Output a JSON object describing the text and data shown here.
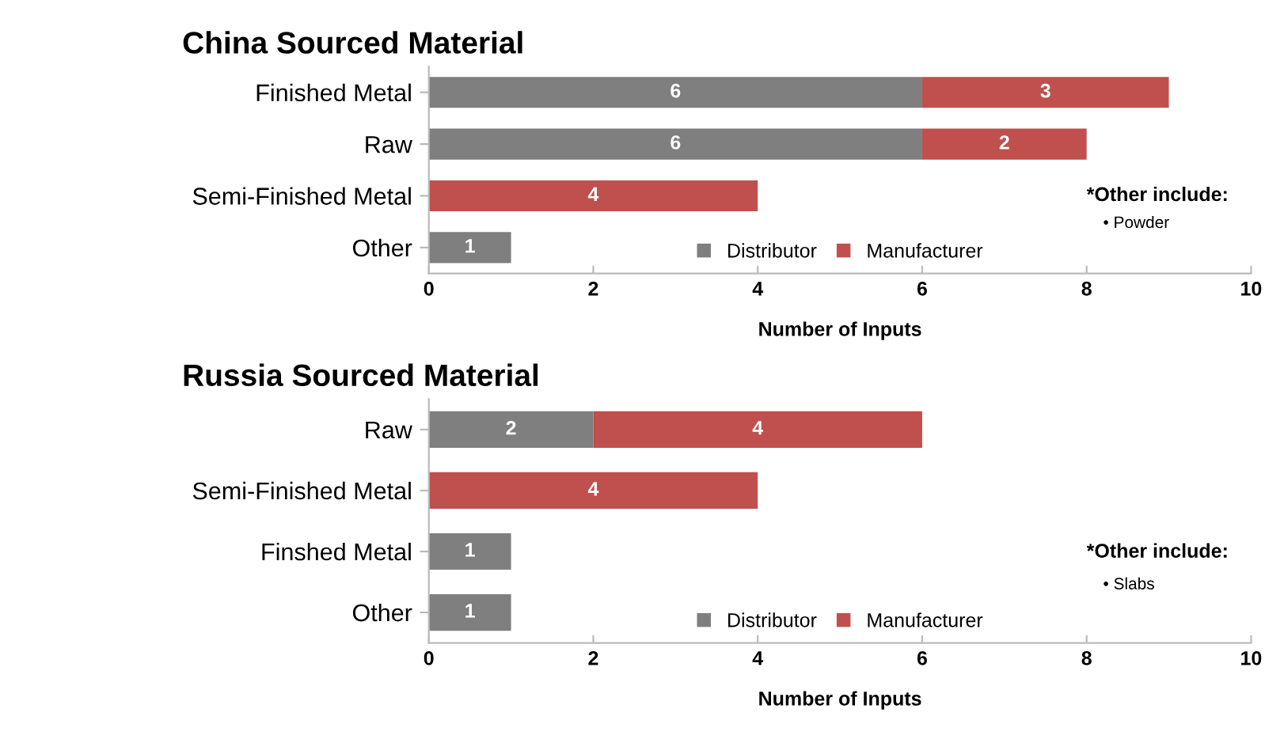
{
  "chart_data": [
    {
      "type": "bar",
      "orientation": "horizontal",
      "stacked": true,
      "title": "China Sourced Material",
      "xlabel": "Number of Inputs",
      "categories": [
        "Finished Metal",
        "Raw",
        "Semi-Finished Metal",
        "Other"
      ],
      "series": [
        {
          "name": "Distributor",
          "color": "#7f7f7f",
          "values": [
            6,
            6,
            null,
            1
          ]
        },
        {
          "name": "Manufacturer",
          "color": "#c0504d",
          "values": [
            3,
            2,
            4,
            null
          ]
        }
      ],
      "xlim": [
        0,
        10
      ],
      "xticks": [
        0,
        2,
        4,
        6,
        8,
        10
      ],
      "data_labels": true,
      "legend": "bottom",
      "grid": false,
      "annotations": [
        "*Other include:",
        "• Powder"
      ]
    },
    {
      "type": "bar",
      "orientation": "horizontal",
      "stacked": true,
      "title": "Russia Sourced Material",
      "xlabel": "Number of Inputs",
      "categories": [
        "Raw",
        "Semi-Finished Metal",
        "Finshed Metal",
        "Other"
      ],
      "series": [
        {
          "name": "Distributor",
          "color": "#7f7f7f",
          "values": [
            2,
            null,
            1,
            1
          ]
        },
        {
          "name": "Manufacturer",
          "color": "#c0504d",
          "values": [
            4,
            4,
            null,
            null
          ]
        }
      ],
      "xlim": [
        0,
        10
      ],
      "xticks": [
        0,
        2,
        4,
        6,
        8,
        10
      ],
      "data_labels": true,
      "legend": "bottom",
      "grid": false,
      "annotations": [
        "*Other include:",
        "• Slabs"
      ]
    }
  ]
}
